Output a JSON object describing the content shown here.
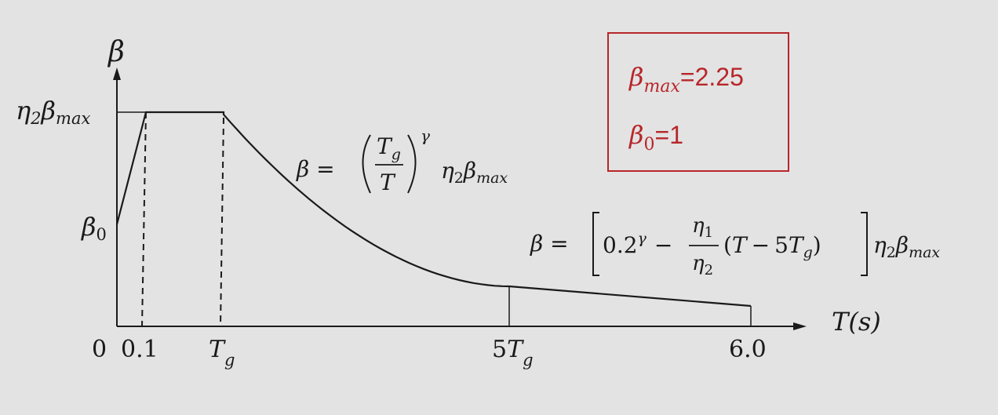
{
  "axes": {
    "y_label": "β",
    "x_label": "T(s)",
    "y_ticks": {
      "top": {
        "main": "η",
        "sub1": "2",
        "mid": "β",
        "sub2": "max"
      },
      "beta0": {
        "main": "β",
        "sub": "0"
      }
    },
    "x_ticks": {
      "zero": "0",
      "t01": "0.1",
      "tg": {
        "main": "T",
        "sub": "g"
      },
      "fivetg": {
        "coef": "5",
        "main": "T",
        "sub": "g"
      },
      "six": "6.0"
    }
  },
  "formulas": {
    "descending": {
      "lhs": "β =",
      "num": {
        "main": "T",
        "sub": "g"
      },
      "den": "T",
      "exp": "γ",
      "tail": {
        "a": "η",
        "a_sub": "2",
        "b": "β",
        "b_sub": "max"
      }
    },
    "linear": {
      "lhs": "β =",
      "first": "0.2",
      "first_exp": "γ",
      "minus": "−",
      "frac_num": {
        "main": "η",
        "sub": "1"
      },
      "frac_den": {
        "main": "η",
        "sub": "2"
      },
      "paren_open": "(",
      "t": "T",
      "minus2": "−",
      "five": "5",
      "tg": {
        "main": "T",
        "sub": "g"
      },
      "paren_close": ")",
      "tail": {
        "a": "η",
        "a_sub": "2",
        "b": "β",
        "b_sub": "max"
      }
    }
  },
  "params": {
    "beta_max": {
      "sym": "β",
      "sub": "max",
      "value": "=2.25"
    },
    "beta_0": {
      "sym": "β",
      "sub": "0",
      "value": "=1"
    }
  },
  "colors": {
    "curve": "#1a1a1a",
    "box": "#b8262a",
    "background": "#e3e3e3"
  }
}
